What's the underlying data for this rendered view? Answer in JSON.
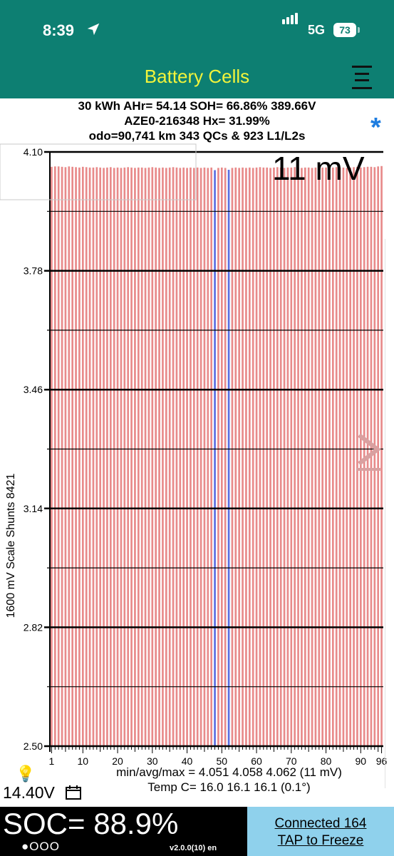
{
  "status_bar": {
    "time": "8:39",
    "network": "5G",
    "battery_level": "73",
    "signal_bars": 4
  },
  "header": {
    "title": "Battery Cells",
    "menu_icon": "hamburger-menu-icon"
  },
  "info": {
    "line1": "30 kWh  AHr= 54.14  SOH= 66.86%   389.66V",
    "line2": "AZE0-216348   Hx= 31.99%",
    "line3": "odo=90,741 km 343 QCs & 923 L1/L2s"
  },
  "star_icon": "*",
  "chart_data": {
    "type": "bar",
    "title": "",
    "xlabel": "",
    "ylabel": "1600 mV Scale   Shunts 8421",
    "ylim": [
      2.5,
      4.1
    ],
    "y_ticks": [
      "4.10",
      "3.78",
      "3.46",
      "3.14",
      "2.82",
      "2.50"
    ],
    "x_ticks": [
      "1",
      "10",
      "20",
      "30",
      "40",
      "50",
      "60",
      "70",
      "80",
      "90",
      "96"
    ],
    "spread_label": "11 mV",
    "cell_count": 96,
    "highlighted_cells": [
      48,
      52
    ],
    "values": [
      4.06,
      4.061,
      4.061,
      4.06,
      4.059,
      4.061,
      4.06,
      4.059,
      4.058,
      4.06,
      4.059,
      4.058,
      4.058,
      4.059,
      4.058,
      4.057,
      4.058,
      4.059,
      4.057,
      4.058,
      4.057,
      4.058,
      4.059,
      4.058,
      4.057,
      4.058,
      4.058,
      4.057,
      4.058,
      4.059,
      4.058,
      4.057,
      4.058,
      4.057,
      4.058,
      4.059,
      4.058,
      4.057,
      4.058,
      4.057,
      4.058,
      4.057,
      4.058,
      4.057,
      4.058,
      4.057,
      4.058,
      4.051,
      4.057,
      4.058,
      4.057,
      4.052,
      4.057,
      4.058,
      4.057,
      4.058,
      4.057,
      4.058,
      4.057,
      4.058,
      4.059,
      4.058,
      4.058,
      4.057,
      4.058,
      4.059,
      4.058,
      4.057,
      4.058,
      4.058,
      4.059,
      4.058,
      4.057,
      4.058,
      4.058,
      4.057,
      4.058,
      4.059,
      4.058,
      4.058,
      4.057,
      4.058,
      4.059,
      4.058,
      4.058,
      4.057,
      4.058,
      4.059,
      4.06,
      4.058,
      4.059,
      4.06,
      4.06,
      4.059,
      4.061,
      4.062
    ],
    "bar_color": "#e88a8a",
    "highlight_color": "#5a6ee0"
  },
  "stats": {
    "minavgmax": "min/avg/max = 4.051  4.058  4.062   (11 mV)",
    "temp": "Temp C= 16.0  16.1  16.1   (0.1°)"
  },
  "voltage": "14.40V",
  "soc": "SOC= 88.9%",
  "dots": "●OOO",
  "version": "v2.0.0(10) en",
  "connect": {
    "line1": "Connected 164",
    "line2": "TAP to Freeze"
  }
}
